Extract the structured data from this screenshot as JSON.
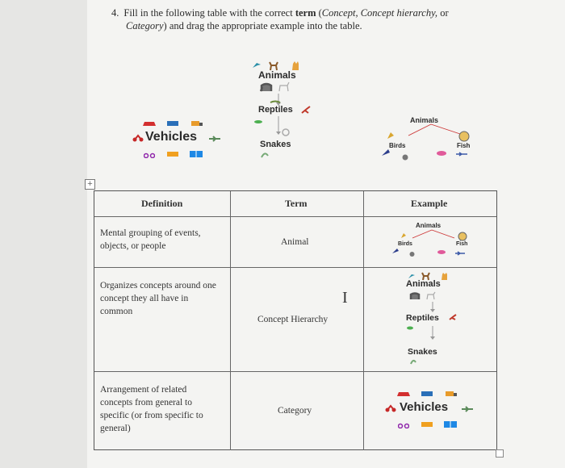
{
  "question": {
    "number": "4.",
    "line1_a": "Fill in the following table with the correct ",
    "line1_term": "term",
    "line1_b": " (",
    "line1_opts": "Concept, Concept hierarchy,",
    "line1_c": " or",
    "line2_opt": "Category",
    "line2_rest": ") and drag the appropriate example into the table."
  },
  "examples": {
    "animals": "Animals",
    "reptiles": "Reptiles",
    "snakes": "Snakes",
    "vehicles": "Vehicles",
    "birds": "Birds",
    "fish": "Fish"
  },
  "table": {
    "headers": [
      "Definition",
      "Term",
      "Example"
    ],
    "rows": [
      {
        "definition": "Mental grouping of events, objects, or people",
        "term": "Animal"
      },
      {
        "definition": "Organizes concepts around one concept they all have in common",
        "term": "Concept Hierarchy"
      },
      {
        "definition": "Arrangement of related concepts from general to specific (or from specific to general)",
        "term": "Category"
      }
    ]
  },
  "controls": {
    "add_symbol": "+",
    "cursor_symbol": "I"
  },
  "colors": {
    "page": "#f4f4f2",
    "background": "#e6e6e4",
    "border": "#666666"
  }
}
